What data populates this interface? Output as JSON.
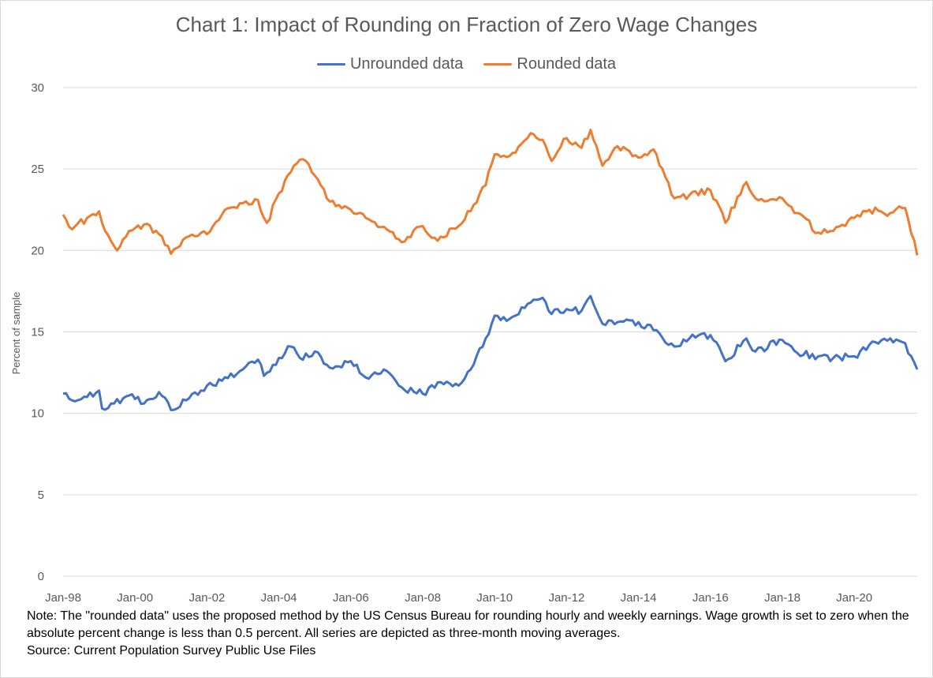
{
  "title": "Chart 1: Impact of Rounding on Fraction of Zero Wage Changes",
  "note": "Note: The \"rounded data\" uses the proposed method by the US Census Bureau for rounding hourly and weekly earnings. Wage growth is set to zero when the absolute percent change is less than 0.5 percent.  All series are depicted as three-month moving averages.",
  "source": "Source: Current Population Survey Public Use Files",
  "colors": {
    "unrounded": "#4472c4",
    "rounded": "#ed7d31",
    "grid": "#d9d9d9"
  },
  "chart_data": {
    "type": "line",
    "title": "Chart 1: Impact of Rounding on Fraction of Zero Wage Changes",
    "xlabel": "",
    "ylabel": "Percent of sample",
    "ylim": [
      0,
      30
    ],
    "yticks": [
      0,
      5,
      10,
      15,
      20,
      25,
      30
    ],
    "x_start": "Jan-98",
    "x_end": "Oct-21",
    "xticks": [
      "Jan-98",
      "Jan-00",
      "Jan-02",
      "Jan-04",
      "Jan-06",
      "Jan-08",
      "Jan-10",
      "Jan-12",
      "Jan-14",
      "Jan-16",
      "Jan-18",
      "Jan-20"
    ],
    "legend_position": "top",
    "grid": true,
    "series": [
      {
        "name": "Unrounded data",
        "color": "#4472c4",
        "anchors": [
          [
            "Jan-98",
            11.2
          ],
          [
            "Apr-98",
            10.8
          ],
          [
            "Sep-98",
            11.0
          ],
          [
            "Jan-99",
            11.4
          ],
          [
            "Feb-99",
            10.3
          ],
          [
            "Jun-99",
            10.6
          ],
          [
            "Nov-99",
            11.1
          ],
          [
            "Apr-00",
            10.6
          ],
          [
            "Sep-00",
            11.3
          ],
          [
            "Jan-01",
            10.2
          ],
          [
            "Jun-01",
            10.8
          ],
          [
            "Jan-02",
            11.7
          ],
          [
            "Jun-02",
            12.0
          ],
          [
            "Jan-03",
            12.7
          ],
          [
            "Jun-03",
            13.3
          ],
          [
            "Aug-03",
            12.3
          ],
          [
            "Jan-04",
            13.4
          ],
          [
            "May-04",
            14.1
          ],
          [
            "Aug-04",
            13.4
          ],
          [
            "Jan-05",
            13.8
          ],
          [
            "Jun-05",
            12.8
          ],
          [
            "Jan-06",
            13.2
          ],
          [
            "Jun-06",
            12.2
          ],
          [
            "Jan-07",
            12.6
          ],
          [
            "Jun-07",
            11.6
          ],
          [
            "Jan-08",
            11.2
          ],
          [
            "Jun-08",
            11.9
          ],
          [
            "Jan-09",
            11.7
          ],
          [
            "Jun-09",
            13.0
          ],
          [
            "Oct-09",
            14.6
          ],
          [
            "Jan-10",
            16.0
          ],
          [
            "Jun-10",
            15.8
          ],
          [
            "Jan-11",
            16.8
          ],
          [
            "May-11",
            17.1
          ],
          [
            "Aug-11",
            16.1
          ],
          [
            "Jan-12",
            16.4
          ],
          [
            "Jun-12",
            16.3
          ],
          [
            "Sep-12",
            17.2
          ],
          [
            "Jan-13",
            15.5
          ],
          [
            "Jun-13",
            15.6
          ],
          [
            "Jan-14",
            15.6
          ],
          [
            "Jun-14",
            15.1
          ],
          [
            "Jan-15",
            14.1
          ],
          [
            "Jun-15",
            14.6
          ],
          [
            "Jan-16",
            14.8
          ],
          [
            "Jun-16",
            13.2
          ],
          [
            "Jan-17",
            14.6
          ],
          [
            "Apr-17",
            13.8
          ],
          [
            "Jan-18",
            14.5
          ],
          [
            "Jun-18",
            13.7
          ],
          [
            "Jan-19",
            13.5
          ],
          [
            "Jun-19",
            13.4
          ],
          [
            "Jan-20",
            13.5
          ],
          [
            "Jun-20",
            14.2
          ],
          [
            "Jan-21",
            14.6
          ],
          [
            "Jun-21",
            14.3
          ],
          [
            "Oct-21",
            12.7
          ]
        ]
      },
      {
        "name": "Rounded data",
        "color": "#ed7d31",
        "anchors": [
          [
            "Jan-98",
            22.2
          ],
          [
            "Apr-98",
            21.3
          ],
          [
            "Sep-98",
            22.0
          ],
          [
            "Jan-99",
            22.4
          ],
          [
            "Feb-99",
            21.7
          ],
          [
            "Jul-99",
            20.0
          ],
          [
            "Nov-99",
            21.2
          ],
          [
            "Apr-00",
            21.6
          ],
          [
            "Sep-00",
            21.0
          ],
          [
            "Jan-01",
            19.8
          ],
          [
            "Jun-01",
            20.8
          ],
          [
            "Jan-02",
            21.0
          ],
          [
            "Jun-02",
            22.2
          ],
          [
            "Jan-03",
            22.9
          ],
          [
            "Jun-03",
            23.1
          ],
          [
            "Sep-03",
            21.7
          ],
          [
            "Jan-04",
            23.5
          ],
          [
            "Jun-04",
            25.2
          ],
          [
            "Sep-04",
            25.6
          ],
          [
            "Jan-05",
            24.6
          ],
          [
            "Jun-05",
            23.0
          ],
          [
            "Jan-06",
            22.5
          ],
          [
            "Jun-06",
            22.0
          ],
          [
            "Jan-07",
            21.3
          ],
          [
            "Jun-07",
            20.5
          ],
          [
            "Jan-08",
            21.5
          ],
          [
            "Jun-08",
            20.6
          ],
          [
            "Jan-09",
            21.5
          ],
          [
            "Jun-09",
            22.8
          ],
          [
            "Oct-09",
            24.0
          ],
          [
            "Jan-10",
            25.9
          ],
          [
            "Jun-10",
            25.8
          ],
          [
            "Jan-11",
            27.2
          ],
          [
            "May-11",
            26.8
          ],
          [
            "Aug-11",
            25.5
          ],
          [
            "Jan-12",
            26.9
          ],
          [
            "Jun-12",
            26.3
          ],
          [
            "Sep-12",
            27.4
          ],
          [
            "Jan-13",
            25.2
          ],
          [
            "Jun-13",
            26.4
          ],
          [
            "Jan-14",
            25.7
          ],
          [
            "Jun-14",
            26.2
          ],
          [
            "Jan-15",
            23.2
          ],
          [
            "Jun-15",
            23.4
          ],
          [
            "Jan-16",
            23.7
          ],
          [
            "Jun-16",
            21.7
          ],
          [
            "Jan-17",
            24.2
          ],
          [
            "Apr-17",
            23.2
          ],
          [
            "Jan-18",
            23.2
          ],
          [
            "Jun-18",
            22.3
          ],
          [
            "Jan-19",
            21.1
          ],
          [
            "Jun-19",
            21.2
          ],
          [
            "Jan-20",
            22.0
          ],
          [
            "Jun-20",
            22.5
          ],
          [
            "Jan-21",
            22.3
          ],
          [
            "Jun-21",
            22.6
          ],
          [
            "Oct-21",
            19.7
          ]
        ]
      }
    ]
  }
}
